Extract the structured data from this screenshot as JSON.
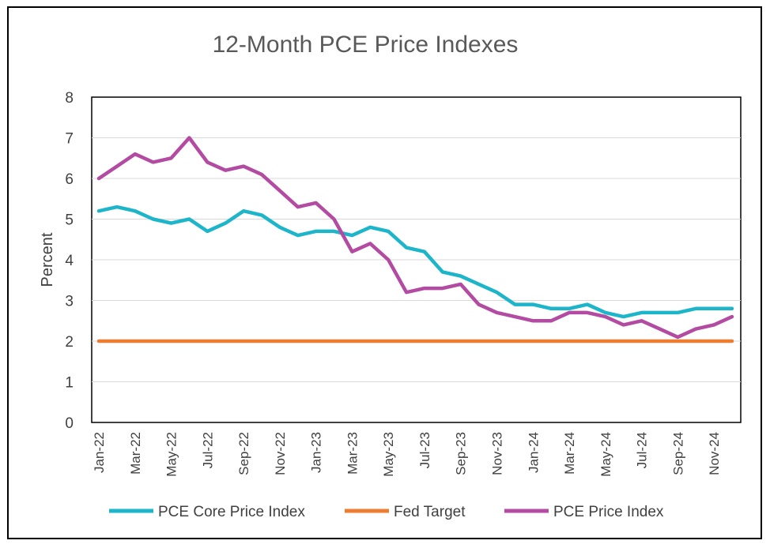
{
  "chart_data": {
    "type": "line",
    "title": "12-Month PCE Price Indexes",
    "xlabel": "",
    "ylabel": "Percent",
    "ylim": [
      0,
      8
    ],
    "yticks": [
      "0",
      "1",
      "2",
      "3",
      "4",
      "5",
      "6",
      "7",
      "8"
    ],
    "categories": [
      "Jan-22",
      "Feb-22",
      "Mar-22",
      "Apr-22",
      "May-22",
      "Jun-22",
      "Jul-22",
      "Aug-22",
      "Sep-22",
      "Oct-22",
      "Nov-22",
      "Dec-22",
      "Jan-23",
      "Feb-23",
      "Mar-23",
      "Apr-23",
      "May-23",
      "Jun-23",
      "Jul-23",
      "Aug-23",
      "Sep-23",
      "Oct-23",
      "Nov-23",
      "Dec-23",
      "Jan-24",
      "Feb-24",
      "Mar-24",
      "Apr-24",
      "May-24",
      "Jun-24",
      "Jul-24",
      "Aug-24",
      "Sep-24",
      "Oct-24",
      "Nov-24",
      "Dec-24"
    ],
    "xtick_labels": [
      "Jan-22",
      "Mar-22",
      "May-22",
      "Jul-22",
      "Sep-22",
      "Nov-22",
      "Jan-23",
      "Mar-23",
      "May-23",
      "Jul-23",
      "Sep-23",
      "Nov-23",
      "Jan-24",
      "Mar-24",
      "May-24",
      "Jul-24",
      "Sep-24",
      "Nov-24"
    ],
    "series": [
      {
        "name": "PCE Core Price Index",
        "color": "#1CB5C9",
        "values": [
          5.2,
          5.3,
          5.2,
          5.0,
          4.9,
          5.0,
          4.7,
          4.9,
          5.2,
          5.1,
          4.8,
          4.6,
          4.7,
          4.7,
          4.6,
          4.8,
          4.7,
          4.3,
          4.2,
          3.7,
          3.6,
          3.4,
          3.2,
          2.9,
          2.9,
          2.8,
          2.8,
          2.9,
          2.7,
          2.6,
          2.7,
          2.7,
          2.7,
          2.8,
          2.8,
          2.8
        ]
      },
      {
        "name": "Fed Target",
        "color": "#ED7D31",
        "values": [
          2,
          2,
          2,
          2,
          2,
          2,
          2,
          2,
          2,
          2,
          2,
          2,
          2,
          2,
          2,
          2,
          2,
          2,
          2,
          2,
          2,
          2,
          2,
          2,
          2,
          2,
          2,
          2,
          2,
          2,
          2,
          2,
          2,
          2,
          2,
          2
        ]
      },
      {
        "name": "PCE Price Index",
        "color": "#B44BA3",
        "values": [
          6.0,
          6.3,
          6.6,
          6.4,
          6.5,
          7.0,
          6.4,
          6.2,
          6.3,
          6.1,
          5.7,
          5.3,
          5.4,
          5.0,
          4.2,
          4.4,
          4.0,
          3.2,
          3.3,
          3.3,
          3.4,
          2.9,
          2.7,
          2.6,
          2.5,
          2.5,
          2.7,
          2.7,
          2.6,
          2.4,
          2.5,
          2.3,
          2.1,
          2.3,
          2.4,
          2.6
        ]
      }
    ],
    "grid": true,
    "legend_position": "bottom"
  }
}
